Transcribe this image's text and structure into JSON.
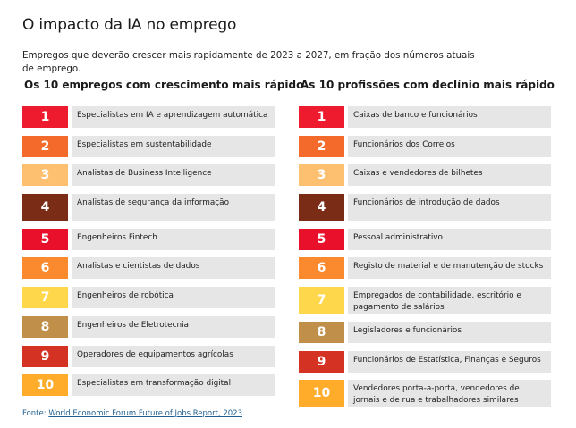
{
  "title": "O impacto da IA no emprego",
  "subtitle": "Empregos que deverão crescer mais rapidamente de 2023 a 2027, em fração dos números atuais de emprego.",
  "colors": [
    "#ee1a2e",
    "#f46a2b",
    "#fdc070",
    "#7a2c17",
    "#e8102a",
    "#fb8a2e",
    "#fed84a",
    "#c0904a",
    "#d43223",
    "#ffac2a"
  ],
  "growth": {
    "heading": "Os 10 empregos com crescimento mais rápido",
    "items": [
      {
        "rank": "1",
        "label": "Especialistas em IA e aprendizagem automática"
      },
      {
        "rank": "2",
        "label": "Especialistas em sustentabilidade"
      },
      {
        "rank": "3",
        "label": "Analistas de Business Intelligence"
      },
      {
        "rank": "4",
        "label": "Analistas de segurança da informação"
      },
      {
        "rank": "5",
        "label": "Engenheiros Fintech"
      },
      {
        "rank": "6",
        "label": "Analistas e cientistas de dados"
      },
      {
        "rank": "7",
        "label": "Engenheiros de robótica"
      },
      {
        "rank": "8",
        "label": "Engenheiros de Eletrotecnia"
      },
      {
        "rank": "9",
        "label": "Operadores de equipamentos agrícolas"
      },
      {
        "rank": "10",
        "label": "Especialistas em transformação digital"
      }
    ]
  },
  "decline": {
    "heading": "As 10 profissões com declínio mais rápido",
    "items": [
      {
        "rank": "1",
        "label": "Caixas de banco e funcionários"
      },
      {
        "rank": "2",
        "label": "Funcionários dos Correios"
      },
      {
        "rank": "3",
        "label": "Caixas e vendedores de bilhetes"
      },
      {
        "rank": "4",
        "label": "Funcionários de introdução de dados"
      },
      {
        "rank": "5",
        "label": "Pessoal administrativo"
      },
      {
        "rank": "6",
        "label": "Registo de material e de manutenção de stocks"
      },
      {
        "rank": "7",
        "label": "Empregados de contabilidade, escritório e pagamento de salários"
      },
      {
        "rank": "8",
        "label": "Legisladores e funcionários"
      },
      {
        "rank": "9",
        "label": "Funcionários de Estatística, Finanças e Seguros"
      },
      {
        "rank": "10",
        "label": "Vendedores porta-a-porta, vendedores de jornais e de rua e trabalhadores similares"
      }
    ]
  },
  "source": {
    "prefix": "Fonte: ",
    "link_text": "World Economic Forum Future of Jobs Report, 2023",
    "suffix": "."
  }
}
